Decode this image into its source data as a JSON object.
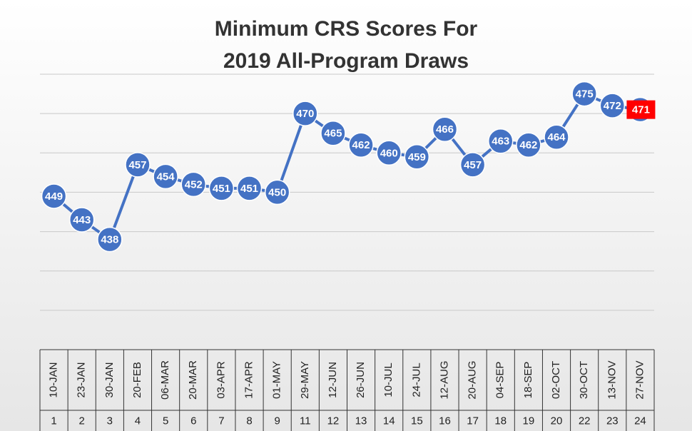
{
  "chart_data": {
    "type": "line",
    "title": "Minimum CRS Scores For",
    "subtitle": "2019 All-Program Draws",
    "categories": [
      "10-JAN",
      "23-JAN",
      "30-JAN",
      "20-FEB",
      "06-MAR",
      "20-MAR",
      "03-APR",
      "17-APR",
      "01-MAY",
      "29-MAY",
      "12-JUN",
      "26-JUN",
      "10-JUL",
      "24-JUL",
      "12-AUG",
      "20-AUG",
      "04-SEP",
      "18-SEP",
      "02-OCT",
      "30-OCT",
      "13-NOV",
      "27-NOV"
    ],
    "draw_numbers": [
      1,
      2,
      3,
      4,
      5,
      6,
      7,
      8,
      9,
      11,
      12,
      13,
      14,
      15,
      16,
      17,
      18,
      19,
      20,
      22,
      23,
      24
    ],
    "series": [
      {
        "color": "#4472c4",
        "values": [
          449,
          443,
          438,
          457,
          454,
          452,
          451,
          451,
          450,
          470,
          465,
          462,
          460,
          459,
          466,
          457,
          463,
          462,
          464,
          475,
          472,
          471
        ]
      }
    ],
    "highlight": {
      "index": 21,
      "color": "#ff0000"
    },
    "ylim": [
      410,
      480
    ],
    "yticks": [
      420,
      430,
      440,
      450,
      460,
      470,
      480
    ],
    "grid": true
  }
}
